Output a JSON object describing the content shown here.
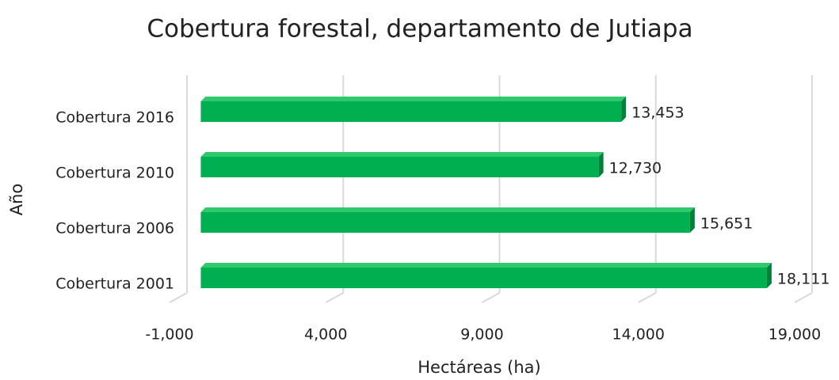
{
  "chart_data": {
    "type": "bar",
    "orientation": "horizontal",
    "title": "Cobertura forestal, departamento de Jutiapa",
    "x_label": "Hectáreas (ha)",
    "y_label": "Año",
    "categories": [
      "Cobertura 2016",
      "Cobertura 2010",
      "Cobertura 2006",
      "Cobertura 2001"
    ],
    "values": [
      13453,
      12730,
      15651,
      18111
    ],
    "value_labels": [
      "13,453",
      "12,730",
      "15,651",
      "18,111"
    ],
    "color": "#00b050",
    "xlim": [
      -1000,
      19000
    ],
    "xticks": [
      {
        "value": -1000,
        "label": "-1,000"
      },
      {
        "value": 4000,
        "label": "4,000"
      },
      {
        "value": 9000,
        "label": "9,000"
      },
      {
        "value": 14000,
        "label": "14,000"
      },
      {
        "value": 19000,
        "label": "19,000"
      }
    ],
    "grid": true
  }
}
